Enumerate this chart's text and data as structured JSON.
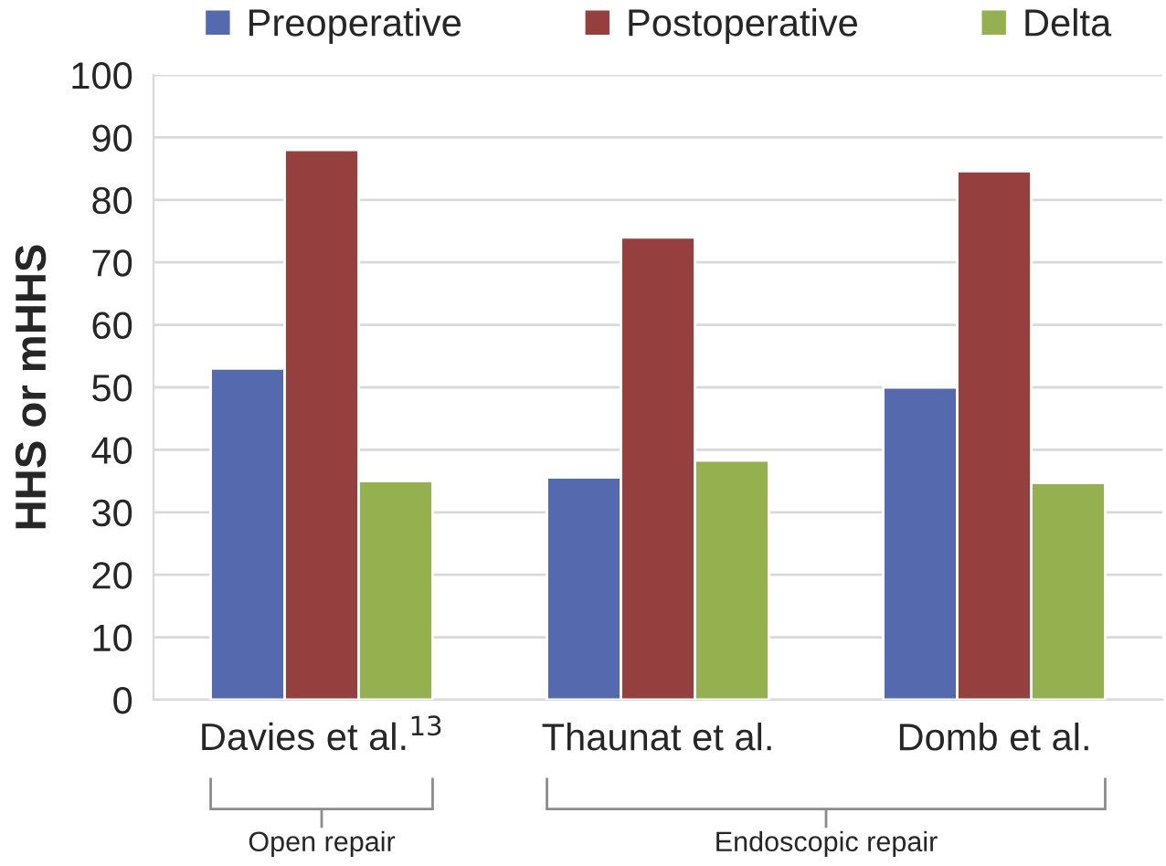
{
  "chart_data": {
    "type": "bar",
    "ylabel": "HHS or mHHS",
    "categories": [
      "Davies et al.$^{13}$",
      "Thaunat et al.",
      "Domb et al."
    ],
    "series": [
      {
        "name": "Preoperative",
        "color": "#5469ae",
        "values": [
          53,
          35.6,
          50
        ]
      },
      {
        "name": "Postoperative",
        "color": "#953f3f",
        "values": [
          88,
          74,
          84.6
        ]
      },
      {
        "name": "Delta",
        "color": "#95b04f",
        "values": [
          35,
          38.3,
          34.7
        ]
      }
    ],
    "ylim": [
      0,
      100
    ],
    "yticks": [
      0,
      10,
      20,
      30,
      40,
      50,
      60,
      70,
      80,
      90,
      100
    ],
    "grid": "y",
    "legend": "top",
    "annotations": [
      "Open repair",
      "Endoscopic repair"
    ]
  }
}
